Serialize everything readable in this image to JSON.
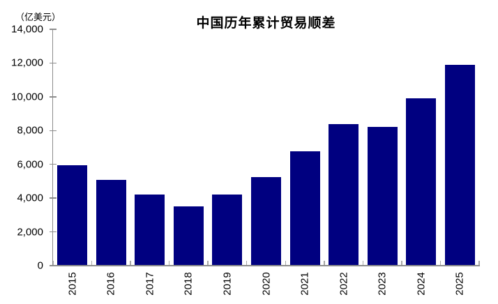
{
  "header": {
    "title": "中国历年累计贸易顺差",
    "unit_label": "（亿美元）"
  },
  "chart_data": {
    "type": "bar",
    "title": "中国历年累计贸易顺差",
    "ylabel": "（亿美元）",
    "xlabel": "",
    "categories": [
      "2015",
      "2016",
      "2017",
      "2018",
      "2019",
      "2020",
      "2021",
      "2022",
      "2023",
      "2024",
      "2025"
    ],
    "values": [
      5940,
      5090,
      4210,
      3520,
      4210,
      5260,
      6760,
      8400,
      8230,
      9920,
      11890
    ],
    "ylim": [
      0,
      14000
    ],
    "ytick_step": 2000,
    "ytick_labels": [
      "0",
      "2,000",
      "4,000",
      "6,000",
      "8,000",
      "10,000",
      "12,000",
      "14,000"
    ],
    "grid": false,
    "legend": null,
    "bar_gap_ratio": 0.23,
    "colors": {
      "bar": "#000080",
      "axis": "#8c8c8c",
      "tick": "#a6a6a6",
      "text": "#000000",
      "background": "#ffffff"
    }
  }
}
